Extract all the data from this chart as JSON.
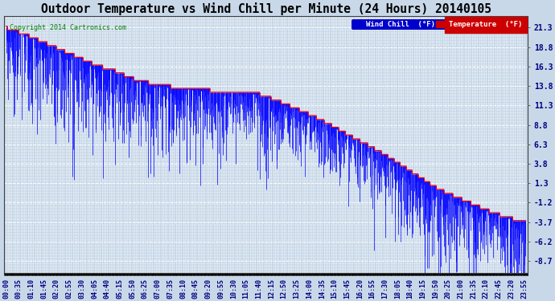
{
  "title": "Outdoor Temperature vs Wind Chill per Minute (24 Hours) 20140105",
  "copyright": "Copyright 2014 Cartronics.com",
  "yticks": [
    21.3,
    18.8,
    16.3,
    13.8,
    11.3,
    8.8,
    6.3,
    3.8,
    1.3,
    -1.2,
    -3.7,
    -6.2,
    -8.7
  ],
  "ylim": [
    -10.2,
    22.8
  ],
  "bg_color": "#c8d8e8",
  "grid_color": "#ffffff",
  "temp_color": "#ff0000",
  "wind_color": "#0000ff",
  "title_fontsize": 10.5,
  "tick_label_fontsize": 7,
  "copyright_color": "#008000",
  "n_minutes": 1440,
  "xtick_interval_minutes": 35
}
